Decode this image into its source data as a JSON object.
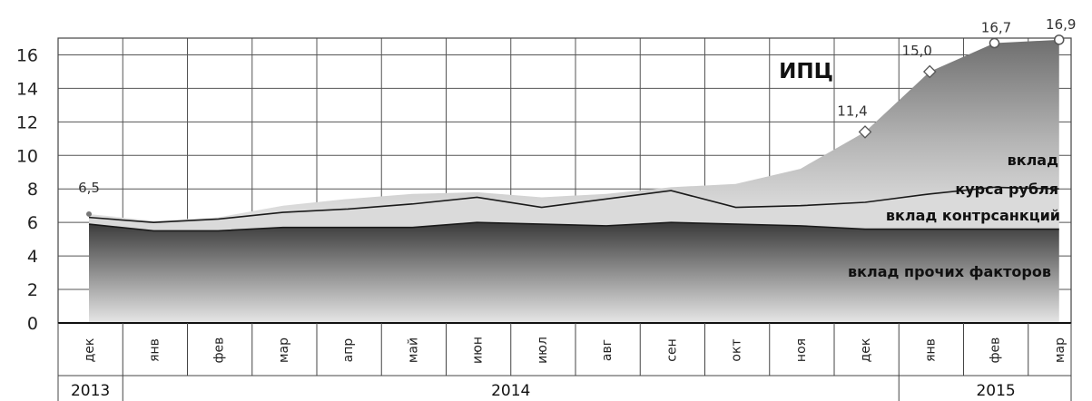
{
  "chart_data": {
    "type": "area",
    "categories": [
      "дек",
      "янв",
      "фев",
      "мар",
      "апр",
      "май",
      "июн",
      "июл",
      "авг",
      "сен",
      "окт",
      "ноя",
      "дек",
      "янв",
      "фев",
      "мар"
    ],
    "years": [
      {
        "label": "2013",
        "from": 0,
        "to": 0
      },
      {
        "label": "2014",
        "from": 1,
        "to": 12
      },
      {
        "label": "2015",
        "from": 13,
        "to": 15
      }
    ],
    "series": [
      {
        "name": "вклад прочих факторов",
        "values": [
          5.9,
          5.5,
          5.5,
          5.7,
          5.7,
          5.7,
          6.0,
          5.9,
          5.8,
          6.0,
          5.9,
          5.8,
          5.6,
          5.6,
          5.6,
          5.6
        ]
      },
      {
        "name": "вклад контрсанкций",
        "values": [
          0.4,
          0.5,
          0.7,
          0.9,
          1.1,
          1.4,
          1.5,
          1.0,
          1.6,
          1.9,
          1.0,
          1.2,
          1.6,
          2.1,
          2.5,
          2.4
        ]
      },
      {
        "name": "вклад курса рубля",
        "values": [
          0.2,
          0.1,
          0.1,
          0.4,
          0.6,
          0.6,
          0.3,
          0.6,
          0.3,
          0.2,
          1.4,
          2.2,
          4.2,
          7.3,
          8.6,
          8.9
        ]
      }
    ],
    "total_label": "ИПЦ",
    "data_labels": [
      {
        "index": 0,
        "text": "6,5"
      },
      {
        "index": 12,
        "text": "11,4"
      },
      {
        "index": 13,
        "text": "15,0"
      },
      {
        "index": 14,
        "text": "16,7"
      },
      {
        "index": 15,
        "text": "16,9"
      }
    ],
    "annotations": {
      "cpi": "ИПЦ",
      "rub_line1": "вклад",
      "rub_line2": "курса рубля",
      "sanctions": "вклад контрсанкций",
      "other": "вклад прочих факторов"
    },
    "yticks": [
      0,
      2,
      4,
      6,
      8,
      10,
      12,
      14,
      16
    ],
    "ylim": [
      0,
      17
    ],
    "grid": true,
    "colors": {
      "bottom_dark": "#3a3a3a",
      "bottom_light": "#e6e6e6",
      "sanctions": "#dadada",
      "ruble_top": "#7d7d7d",
      "ruble_bottom": "#e3e3e3"
    }
  }
}
